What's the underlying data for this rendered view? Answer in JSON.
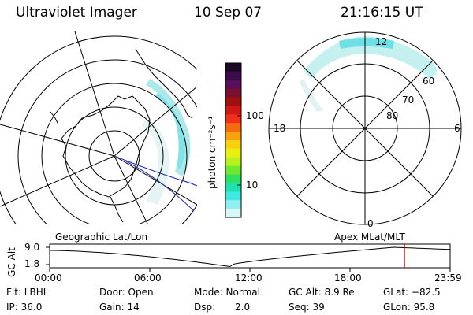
{
  "header": {
    "title": "Ultraviolet Imager",
    "date": "10 Sep 07",
    "time": "21:16:15 UT"
  },
  "colorbar": {
    "unit_label": "photon cm⁻²s⁻¹",
    "ticks": [
      "100",
      "10"
    ],
    "colors": [
      "#1a0a2a",
      "#3b0b4a",
      "#5a0d5a",
      "#7a1030",
      "#a01010",
      "#d01818",
      "#f03018",
      "#f66a10",
      "#f8a010",
      "#f8d010",
      "#e8f010",
      "#b8f020",
      "#70e830",
      "#30e060",
      "#20e0b0",
      "#40e8e0",
      "#90f0f0",
      "#d8f8f8"
    ]
  },
  "left_panel": {
    "caption": "Geographic Lat/Lon"
  },
  "right_panel": {
    "caption": "Apex MLat/MLT",
    "mlt_labels": {
      "top": "12",
      "left": "18",
      "right": "6",
      "bottom": "0"
    },
    "lat_labels": [
      "60",
      "70",
      "80"
    ]
  },
  "altitude_plot": {
    "ylabel": "GC Alt",
    "y_ticks": [
      "9.0",
      "1.8"
    ],
    "x_ticks": [
      "00:00",
      "06:00",
      "12:00",
      "18:00",
      "23:59"
    ],
    "current_time_marker": "21:16",
    "marker_color": "#cc0000"
  },
  "status": {
    "flt": "Flt: LBHL",
    "ip": "IP: 36.0",
    "door": "Door: Open",
    "gain": "Gain: 14",
    "mode": "Mode: Normal",
    "dsp_label": "Dsp:",
    "dsp_value": "2.0",
    "gcalt": "GC Alt: 8.9 Re",
    "seq": "Seq: 39",
    "glat": "GLat: −82.5",
    "glon": "GLon:  95.8"
  }
}
